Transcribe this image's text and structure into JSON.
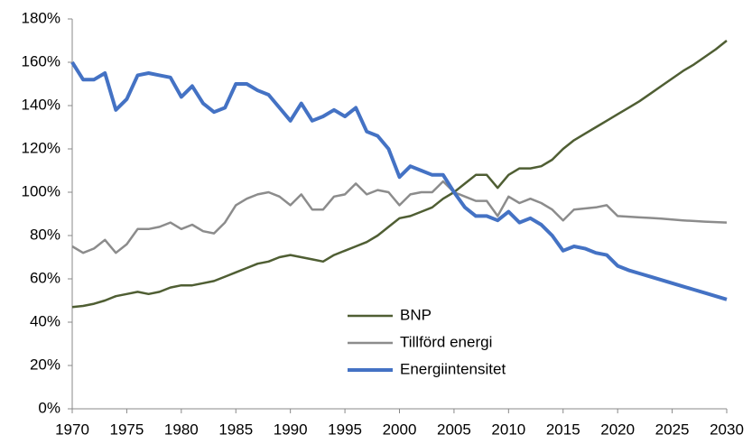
{
  "chart_data": {
    "type": "line",
    "x": [
      1970,
      1971,
      1972,
      1973,
      1974,
      1975,
      1976,
      1977,
      1978,
      1979,
      1980,
      1981,
      1982,
      1983,
      1984,
      1985,
      1986,
      1987,
      1988,
      1989,
      1990,
      1991,
      1992,
      1993,
      1994,
      1995,
      1996,
      1997,
      1998,
      1999,
      2000,
      2001,
      2002,
      2003,
      2004,
      2005,
      2006,
      2007,
      2008,
      2009,
      2010,
      2011,
      2012,
      2013,
      2014,
      2015,
      2016,
      2017,
      2018,
      2019,
      2020,
      2021,
      2022,
      2023,
      2024,
      2025,
      2026,
      2027,
      2028,
      2029,
      2030
    ],
    "series": [
      {
        "name": "BNP",
        "color": "#4f5e33",
        "values": [
          47,
          47.5,
          48.5,
          50,
          52,
          53,
          54,
          53,
          54,
          56,
          57,
          57,
          58,
          59,
          61,
          63,
          65,
          67,
          68,
          70,
          71,
          70,
          69,
          68,
          71,
          73,
          75,
          77,
          80,
          84,
          88,
          89,
          91,
          93,
          97,
          100,
          104,
          108,
          108,
          102,
          108,
          111,
          111,
          112,
          115,
          120,
          124,
          127,
          130,
          133,
          136,
          139,
          142,
          145.5,
          149,
          152.5,
          156,
          159,
          162.5,
          166,
          170
        ]
      },
      {
        "name": "Tillförd energi",
        "color": "#8c8c8c",
        "values": [
          75,
          72,
          74,
          78,
          72,
          76,
          83,
          83,
          84,
          86,
          83,
          85,
          82,
          81,
          86,
          94,
          97,
          99,
          100,
          98,
          94,
          99,
          92,
          92,
          98,
          99,
          104,
          99,
          101,
          100,
          94,
          99,
          100,
          100,
          105,
          100,
          98,
          96,
          96,
          89,
          98,
          95,
          97,
          95,
          92,
          87,
          92,
          92.5,
          93,
          94,
          89,
          88.7,
          88.4,
          88.1,
          87.8,
          87.4,
          87,
          86.7,
          86.4,
          86.2,
          86
        ]
      },
      {
        "name": "Energiintensitet",
        "color": "#4472c4",
        "values": [
          160,
          152,
          152,
          155,
          138,
          143,
          154,
          155,
          154,
          153,
          144,
          149,
          141,
          137,
          139,
          150,
          150,
          147,
          145,
          139,
          133,
          141,
          133,
          135,
          138,
          135,
          139,
          128,
          126,
          120,
          107,
          112,
          110,
          108,
          108,
          100,
          93,
          89,
          89,
          87,
          91,
          86,
          88,
          85,
          80,
          73,
          75,
          74,
          72,
          71,
          66,
          64,
          62.5,
          61,
          59.5,
          58,
          56.5,
          55,
          53.5,
          52,
          50.5
        ]
      }
    ],
    "xlim": [
      1970,
      2030
    ],
    "xticks": [
      1970,
      1975,
      1980,
      1985,
      1990,
      1995,
      2000,
      2005,
      2010,
      2015,
      2020,
      2025,
      2030
    ],
    "ylim": [
      0,
      180
    ],
    "yticks": [
      {
        "value": 0,
        "label": "0%"
      },
      {
        "value": 20,
        "label": "20%"
      },
      {
        "value": 40,
        "label": "40%"
      },
      {
        "value": 60,
        "label": "60%"
      },
      {
        "value": 80,
        "label": "80%"
      },
      {
        "value": 100,
        "label": "100%"
      },
      {
        "value": 120,
        "label": "120%"
      },
      {
        "value": 140,
        "label": "140%"
      },
      {
        "value": 160,
        "label": "160%"
      },
      {
        "value": 180,
        "label": "180%"
      }
    ]
  }
}
